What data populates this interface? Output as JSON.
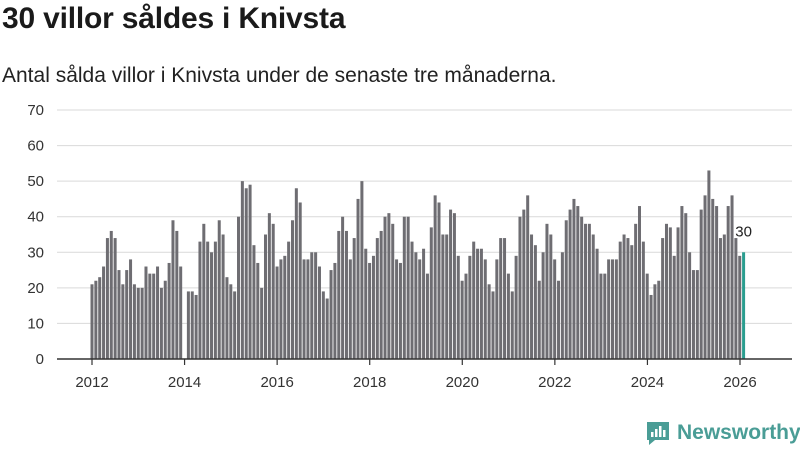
{
  "title": "30 villor såldes i Knivsta",
  "subtitle": "Antal sålda villor i Knivsta under de senaste tre månaderna.",
  "brand": {
    "name": "Newsworthy",
    "color": "#4a9d96"
  },
  "colors": {
    "bar": "#6e6d72",
    "highlight": "#2a9d8f",
    "axis": "#333333",
    "grid": "#d9d9d9"
  },
  "chart_data": {
    "type": "bar",
    "ylim": [
      0,
      70
    ],
    "yticks": [
      0,
      10,
      20,
      30,
      40,
      50,
      60,
      70
    ],
    "xlim": [
      2012,
      2026.4
    ],
    "xticks": [
      2012,
      2014,
      2016,
      2018,
      2020,
      2022,
      2024,
      2026
    ],
    "grid": true,
    "start": 2012,
    "step": 0.0833,
    "values": [
      21,
      22,
      23,
      26,
      34,
      36,
      34,
      25,
      21,
      25,
      28,
      21,
      20,
      20,
      26,
      24,
      24,
      26,
      20,
      22,
      27,
      39,
      36,
      26,
      0,
      19,
      19,
      18,
      33,
      38,
      33,
      30,
      33,
      39,
      35,
      23,
      21,
      19,
      40,
      50,
      48,
      49,
      32,
      27,
      20,
      35,
      41,
      38,
      26,
      28,
      29,
      33,
      39,
      48,
      44,
      28,
      28,
      30,
      30,
      26,
      19,
      17,
      25,
      27,
      36,
      40,
      36,
      28,
      34,
      45,
      50,
      31,
      27,
      29,
      34,
      36,
      40,
      41,
      38,
      28,
      27,
      40,
      40,
      33,
      30,
      28,
      31,
      24,
      37,
      46,
      44,
      35,
      35,
      42,
      41,
      29,
      22,
      24,
      29,
      33,
      31,
      31,
      28,
      21,
      19,
      28,
      34,
      34,
      24,
      19,
      29,
      40,
      42,
      46,
      35,
      32,
      22,
      30,
      38,
      35,
      28,
      22,
      30,
      39,
      42,
      45,
      43,
      40,
      38,
      38,
      35,
      31,
      24,
      24,
      28,
      28,
      28,
      33,
      35,
      34,
      32,
      38,
      43,
      33,
      24,
      18,
      21,
      22,
      34,
      38,
      37,
      29,
      37,
      43,
      41,
      30,
      25,
      25,
      42,
      46,
      53,
      45,
      43,
      34,
      35,
      43,
      46,
      34,
      29,
      30
    ],
    "highlight": {
      "index": 169,
      "value": 30,
      "label": "30"
    },
    "title": "30 villor såldes i Knivsta",
    "xlabel": "",
    "ylabel": ""
  }
}
